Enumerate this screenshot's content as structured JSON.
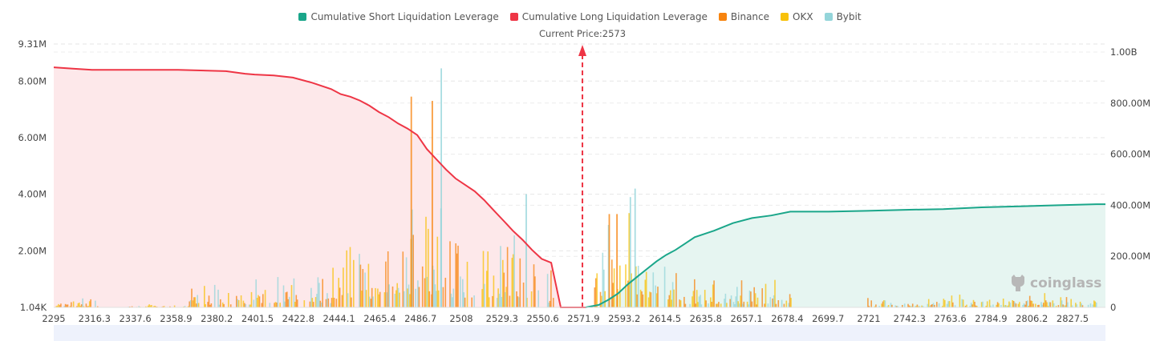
{
  "chart_data": {
    "type": "bar",
    "title": "",
    "current_price_label": "Current Price:2573",
    "current_price": 2573,
    "legend": [
      {
        "name": "Cumulative Short Liquidation Leverage",
        "color": "#1aa68a"
      },
      {
        "name": "Cumulative Long Liquidation Leverage",
        "color": "#ee3545"
      },
      {
        "name": "Binance",
        "color": "#f7840f"
      },
      {
        "name": "OKX",
        "color": "#f8c10a"
      },
      {
        "name": "Bybit",
        "color": "#94d5da"
      }
    ],
    "x_ticks": [
      "2295",
      "2316.3",
      "2337.6",
      "2358.9",
      "2380.2",
      "2401.5",
      "2422.8",
      "2444.1",
      "2465.4",
      "2486.7",
      "2508",
      "2529.3",
      "2550.6",
      "2571.9",
      "2593.2",
      "2614.5",
      "2635.8",
      "2657.1",
      "2678.4",
      "2699.7",
      "2721",
      "2742.3",
      "2763.6",
      "2784.9",
      "2806.2",
      "2827.5"
    ],
    "xlim": [
      2295,
      2849
    ],
    "left_axis": {
      "ticks": [
        "9.31M",
        "8.00M",
        "6.00M",
        "4.00M",
        "2.00M",
        "1.04K"
      ],
      "tick_values": [
        9310000,
        8000000,
        6000000,
        4000000,
        2000000,
        1040
      ],
      "ylim": [
        0,
        9310000
      ]
    },
    "right_axis": {
      "ticks": [
        "1.00B",
        "800.00M",
        "600.00M",
        "400.00M",
        "200.00M",
        "0"
      ],
      "tick_values": [
        1000000000,
        800000000,
        600000000,
        400000000,
        200000000,
        0
      ],
      "ylim": [
        0,
        1000000000
      ]
    },
    "long_curve": {
      "name": "Cumulative Long Liquidation Leverage",
      "x": [
        2295,
        2305,
        2315,
        2330,
        2360,
        2385,
        2395,
        2400,
        2410,
        2420,
        2430,
        2440,
        2445,
        2450,
        2455,
        2460,
        2465,
        2470,
        2475,
        2480,
        2485,
        2490,
        2495,
        2500,
        2505,
        2510,
        2515,
        2520,
        2525,
        2530,
        2535,
        2540,
        2545,
        2550,
        2555,
        2560,
        2573
      ],
      "values": [
        940,
        935,
        930,
        930,
        930,
        925,
        915,
        912,
        908,
        900,
        880,
        855,
        835,
        825,
        810,
        790,
        765,
        745,
        720,
        700,
        675,
        620,
        580,
        540,
        505,
        480,
        455,
        420,
        380,
        340,
        300,
        265,
        225,
        190,
        175,
        0,
        0
      ],
      "unit": "M"
    },
    "short_curve": {
      "name": "Cumulative Short Liquidation Leverage",
      "x": [
        2573,
        2580,
        2585,
        2590,
        2595,
        2600,
        2605,
        2610,
        2615,
        2620,
        2625,
        2630,
        2640,
        2650,
        2660,
        2670,
        2680,
        2700,
        2720,
        2740,
        2760,
        2780,
        2800,
        2820,
        2840,
        2849
      ],
      "values": [
        0,
        10,
        30,
        55,
        90,
        120,
        150,
        180,
        205,
        225,
        250,
        275,
        300,
        330,
        350,
        360,
        375,
        375,
        378,
        382,
        385,
        392,
        396,
        400,
        404,
        404
      ],
      "unit": "M"
    },
    "watermark": "coinglass"
  }
}
